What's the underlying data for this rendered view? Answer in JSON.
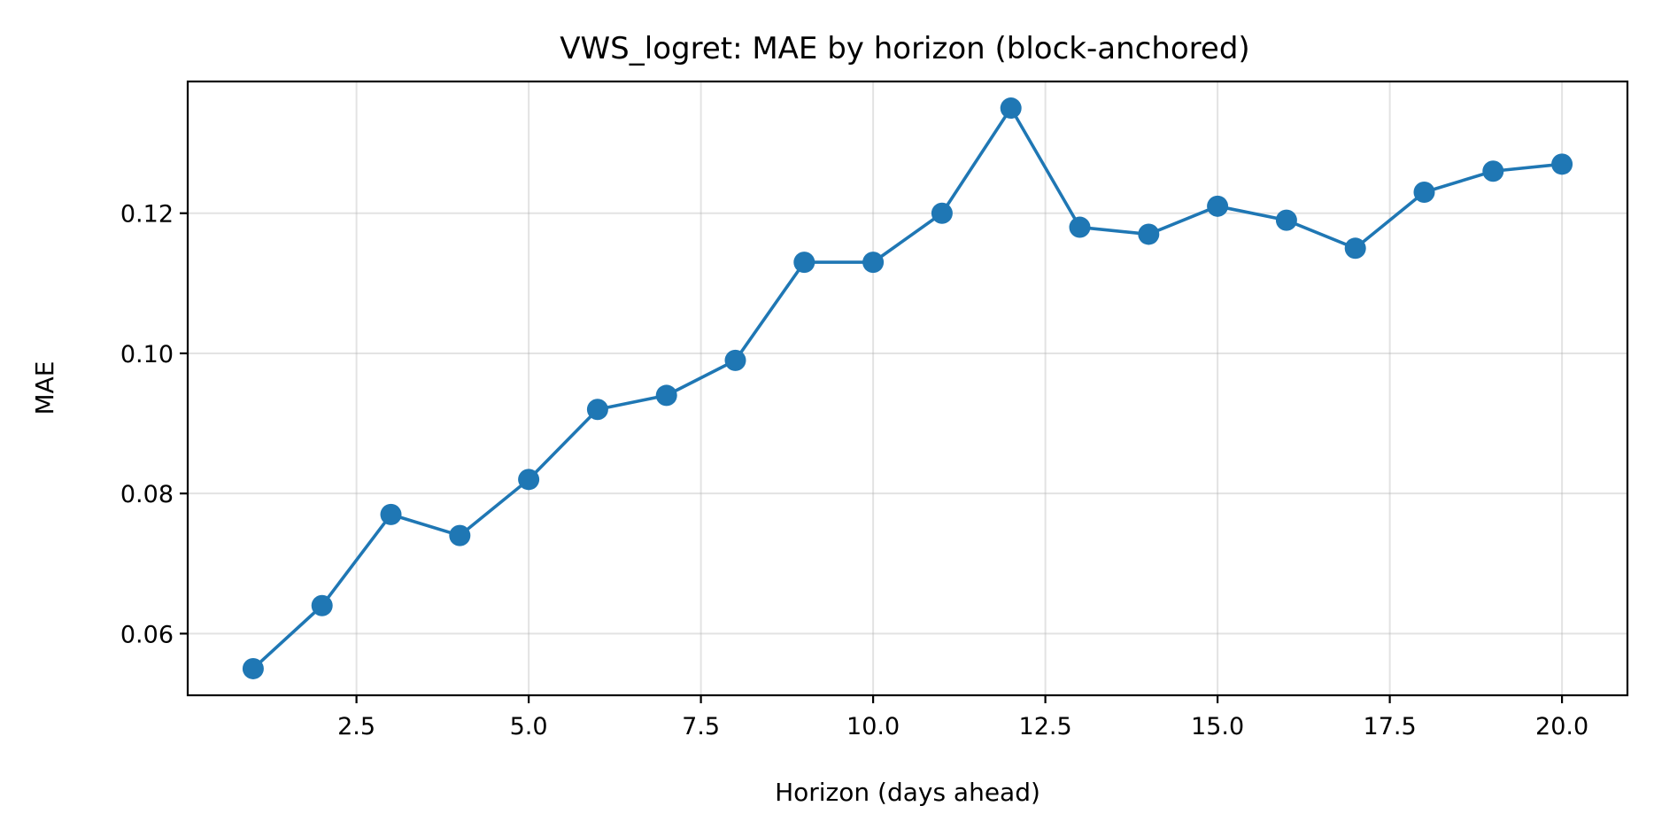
{
  "chart_data": {
    "type": "line",
    "title": "VWS_logret: MAE by horizon (block-anchored)",
    "xlabel": "Horizon (days ahead)",
    "ylabel": "MAE",
    "xlim": [
      0.05,
      20.95
    ],
    "ylim": [
      0.0512,
      0.1388
    ],
    "xticks": [
      2.5,
      5.0,
      7.5,
      10.0,
      12.5,
      15.0,
      17.5,
      20.0
    ],
    "xtick_labels": [
      "2.5",
      "5.0",
      "7.5",
      "10.0",
      "12.5",
      "15.0",
      "17.5",
      "20.0"
    ],
    "yticks": [
      0.06,
      0.08,
      0.1,
      0.12
    ],
    "ytick_labels": [
      "0.06",
      "0.08",
      "0.10",
      "0.12"
    ],
    "grid": true,
    "series": [
      {
        "color": "#1f77b4",
        "marker": "circle",
        "x": [
          1,
          2,
          3,
          4,
          5,
          6,
          7,
          8,
          9,
          10,
          11,
          12,
          13,
          14,
          15,
          16,
          17,
          18,
          19,
          20
        ],
        "y": [
          0.055,
          0.064,
          0.077,
          0.074,
          0.082,
          0.092,
          0.094,
          0.099,
          0.113,
          0.113,
          0.12,
          0.135,
          0.118,
          0.117,
          0.121,
          0.119,
          0.115,
          0.123,
          0.126,
          0.127
        ]
      }
    ]
  }
}
